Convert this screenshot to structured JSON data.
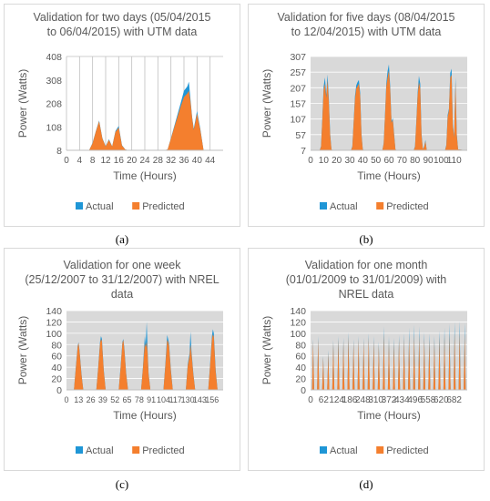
{
  "colors": {
    "actual": "#1f96d6",
    "predicted": "#f47f2e",
    "plot_bg_gray": "#d9d9d9",
    "grid": "#bfbfbf",
    "text": "#595959"
  },
  "labels": [
    "(a)",
    "(b)",
    "(c)",
    "(d)"
  ],
  "chart_data": [
    {
      "type": "area",
      "title_lines": [
        "Validation for two days (05/04/2015",
        "to 06/04/2015) with UTM data"
      ],
      "xlabel": "Time (Hours)",
      "ylabel": "Power (Watts)",
      "xlim": [
        0,
        48
      ],
      "ylim": [
        8,
        408
      ],
      "xticks": [
        0,
        4,
        8,
        12,
        16,
        20,
        24,
        28,
        32,
        36,
        40,
        44
      ],
      "yticks": [
        8,
        108,
        208,
        308,
        408
      ],
      "legend": "bottom",
      "gray_background": false,
      "grid": "vertical",
      "series": [
        {
          "name": "Actual",
          "color_key": "actual",
          "x": [
            0,
            6,
            7,
            8,
            9,
            10,
            11,
            12,
            13,
            14,
            15,
            16,
            17,
            18,
            19,
            30,
            31,
            32,
            33,
            34,
            35,
            36,
            37,
            37.5,
            38,
            38.5,
            39,
            40,
            41,
            42
          ],
          "y": [
            8,
            8,
            10,
            40,
            90,
            135,
            60,
            25,
            55,
            25,
            90,
            112,
            30,
            12,
            8,
            8,
            12,
            60,
            110,
            160,
            210,
            262,
            280,
            300,
            225,
            150,
            100,
            175,
            100,
            8
          ]
        },
        {
          "name": "Predicted",
          "color_key": "predicted",
          "x": [
            0,
            6,
            7,
            8,
            9,
            10,
            11,
            12,
            13,
            14,
            15,
            16,
            17,
            18,
            19,
            30,
            31,
            32,
            33,
            34,
            35,
            36,
            37,
            37.5,
            38,
            38.5,
            39,
            40,
            41,
            42
          ],
          "y": [
            8,
            8,
            10,
            38,
            88,
            132,
            58,
            24,
            52,
            24,
            86,
            105,
            28,
            12,
            8,
            8,
            12,
            58,
            105,
            150,
            195,
            235,
            250,
            262,
            215,
            145,
            95,
            165,
            95,
            8
          ]
        }
      ]
    },
    {
      "type": "area",
      "title_lines": [
        "Validation for five days (08/04/2015",
        "to 12/04/2015) with UTM data"
      ],
      "xlabel": "Time (Hours)",
      "ylabel": "Power (Watts)",
      "xlim": [
        0,
        120
      ],
      "ylim": [
        7,
        307
      ],
      "xticks": [
        0,
        10,
        20,
        30,
        40,
        50,
        60,
        70,
        80,
        90,
        100,
        110
      ],
      "yticks": [
        7,
        57,
        107,
        157,
        207,
        257,
        307
      ],
      "legend": "bottom",
      "gray_background": true,
      "grid": "horizontal",
      "series": [
        {
          "name": "Actual",
          "color_key": "actual",
          "x": [
            0,
            7,
            8,
            9,
            10,
            11,
            12,
            13,
            14,
            15,
            16,
            17,
            18,
            31,
            32,
            33,
            34,
            35,
            36,
            37,
            38,
            39,
            40,
            41,
            42,
            55,
            56,
            57,
            58,
            59,
            60,
            61,
            62,
            63,
            64,
            65,
            66,
            79,
            80,
            81,
            82,
            83,
            84,
            85,
            86,
            87,
            88,
            89,
            103,
            104,
            105,
            106,
            107,
            108,
            109,
            110,
            111,
            112,
            113,
            120
          ],
          "y": [
            7,
            7,
            20,
            110,
            210,
            240,
            185,
            250,
            170,
            60,
            10,
            7,
            7,
            7,
            20,
            100,
            180,
            215,
            225,
            232,
            190,
            60,
            10,
            7,
            7,
            7,
            30,
            120,
            220,
            260,
            282,
            210,
            100,
            110,
            60,
            10,
            7,
            7,
            20,
            100,
            190,
            245,
            220,
            60,
            10,
            20,
            40,
            7,
            7,
            25,
            120,
            140,
            255,
            268,
            90,
            50,
            240,
            60,
            10,
            7
          ]
        },
        {
          "name": "Predicted",
          "color_key": "predicted",
          "x": [
            0,
            7,
            8,
            9,
            10,
            11,
            12,
            13,
            14,
            15,
            16,
            17,
            18,
            31,
            32,
            33,
            34,
            35,
            36,
            37,
            38,
            39,
            40,
            41,
            42,
            55,
            56,
            57,
            58,
            59,
            60,
            61,
            62,
            63,
            64,
            65,
            66,
            79,
            80,
            81,
            82,
            83,
            84,
            85,
            86,
            87,
            88,
            89,
            103,
            104,
            105,
            106,
            107,
            108,
            109,
            110,
            111,
            112,
            113,
            120
          ],
          "y": [
            7,
            7,
            18,
            105,
            200,
            220,
            175,
            232,
            160,
            55,
            10,
            7,
            7,
            7,
            18,
            95,
            170,
            205,
            212,
            220,
            180,
            55,
            10,
            7,
            7,
            7,
            28,
            115,
            210,
            240,
            262,
            200,
            95,
            105,
            55,
            10,
            7,
            7,
            18,
            95,
            180,
            225,
            205,
            55,
            10,
            18,
            36,
            7,
            7,
            22,
            112,
            135,
            240,
            248,
            85,
            48,
            225,
            55,
            10,
            7
          ]
        }
      ]
    },
    {
      "type": "area",
      "title_lines": [
        "Validation for one week",
        "(25/12/2007 to 31/12/2007) with NREL",
        "data"
      ],
      "xlabel": "Time (Hours)",
      "ylabel": "Power (Watts)",
      "xlim": [
        0,
        168
      ],
      "ylim": [
        0,
        140
      ],
      "xticks": [
        0,
        13,
        26,
        39,
        52,
        65,
        78,
        91,
        104,
        117,
        130,
        143,
        156
      ],
      "yticks": [
        0,
        20,
        40,
        60,
        80,
        100,
        120,
        140
      ],
      "legend": "bottom",
      "gray_background": true,
      "grid": "horizontal",
      "series": [
        {
          "name": "Actual",
          "color_key": "actual",
          "x": [
            0,
            8,
            10,
            12,
            13,
            14,
            16,
            18,
            32,
            34,
            36,
            37,
            38,
            40,
            42,
            56,
            58,
            60,
            61,
            62,
            64,
            66,
            80,
            82,
            84,
            85,
            86,
            87,
            88,
            90,
            104,
            106,
            108,
            109,
            110,
            112,
            114,
            128,
            130,
            132,
            133,
            134,
            136,
            138,
            152,
            154,
            156,
            157,
            158,
            160,
            162,
            168
          ],
          "y": [
            0,
            0,
            40,
            78,
            84,
            70,
            30,
            0,
            0,
            40,
            85,
            95,
            90,
            35,
            0,
            0,
            40,
            85,
            90,
            75,
            30,
            0,
            0,
            40,
            95,
            80,
            120,
            70,
            30,
            0,
            0,
            45,
            97,
            90,
            82,
            35,
            0,
            0,
            45,
            65,
            103,
            70,
            30,
            0,
            0,
            45,
            95,
            107,
            100,
            35,
            0,
            0
          ]
        },
        {
          "name": "Predicted",
          "color_key": "predicted",
          "x": [
            0,
            8,
            10,
            12,
            13,
            14,
            16,
            18,
            32,
            34,
            36,
            37,
            38,
            40,
            42,
            56,
            58,
            60,
            61,
            62,
            64,
            66,
            80,
            82,
            84,
            85,
            86,
            87,
            88,
            90,
            104,
            106,
            108,
            109,
            110,
            112,
            114,
            128,
            130,
            132,
            133,
            134,
            136,
            138,
            152,
            154,
            156,
            157,
            158,
            160,
            162,
            168
          ],
          "y": [
            0,
            0,
            38,
            76,
            83,
            68,
            28,
            0,
            0,
            38,
            82,
            90,
            86,
            33,
            0,
            0,
            38,
            83,
            88,
            72,
            28,
            0,
            0,
            38,
            82,
            75,
            85,
            65,
            28,
            0,
            0,
            42,
            88,
            85,
            78,
            32,
            0,
            0,
            42,
            60,
            80,
            65,
            28,
            0,
            0,
            42,
            90,
            98,
            94,
            32,
            0,
            0
          ]
        }
      ]
    },
    {
      "type": "area",
      "title_lines": [
        "Validation for one month",
        "(01/01/2009 to 31/01/2009) with",
        "NREL data"
      ],
      "xlabel": "Time (Hours)",
      "ylabel": "Power (Watts)",
      "xlim": [
        0,
        744
      ],
      "ylim": [
        0,
        140
      ],
      "xticks": [
        0,
        62,
        124,
        186,
        248,
        310,
        372,
        434,
        496,
        558,
        620,
        682
      ],
      "yticks": [
        0,
        20,
        40,
        60,
        80,
        100,
        120,
        140
      ],
      "legend": "bottom",
      "gray_background": true,
      "grid": "horizontal",
      "daily_peaks": {
        "period_hours": 24,
        "peak_hour_offset": 12,
        "actual": [
          90,
          95,
          60,
          70,
          88,
          95,
          92,
          102,
          90,
          95,
          92,
          100,
          95,
          85,
          112,
          95,
          92,
          97,
          100,
          110,
          115,
          112,
          102,
          100,
          96,
          105,
          110,
          117,
          120,
          122,
          118
        ],
        "predicted": [
          86,
          90,
          58,
          66,
          84,
          90,
          87,
          95,
          85,
          90,
          87,
          93,
          88,
          80,
          100,
          88,
          85,
          90,
          92,
          95,
          98,
          97,
          92,
          90,
          88,
          94,
          97,
          100,
          102,
          103,
          100
        ]
      },
      "series": [
        {
          "name": "Actual",
          "color_key": "actual"
        },
        {
          "name": "Predicted",
          "color_key": "predicted"
        }
      ]
    }
  ]
}
